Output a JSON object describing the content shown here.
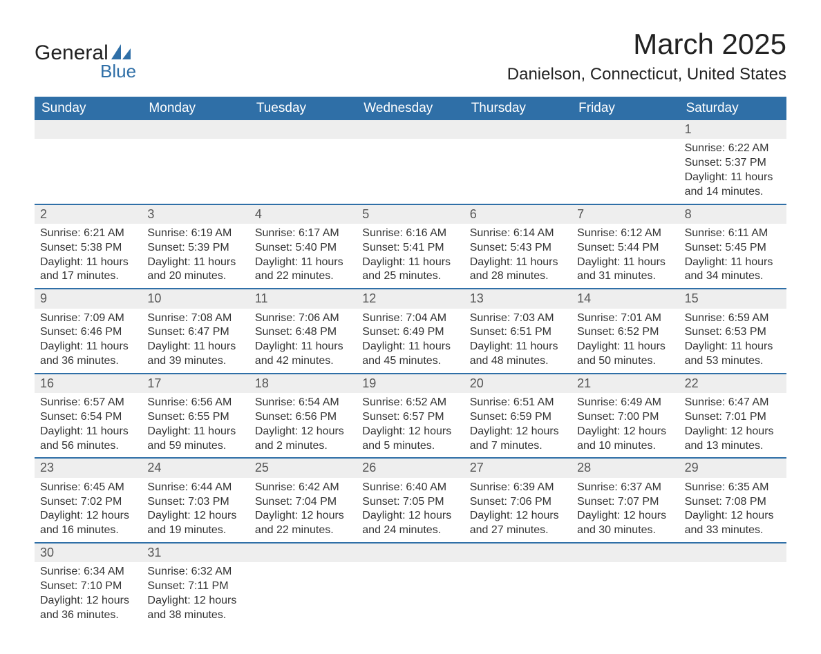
{
  "logo": {
    "word1": "General",
    "word2": "Blue",
    "sail_color": "#2f6fa7"
  },
  "title": "March 2025",
  "location": "Danielson, Connecticut, United States",
  "colors": {
    "header_bg": "#2f6fa7",
    "header_text": "#ffffff",
    "row_divider": "#2f6fa7",
    "daynum_bg": "#eeeeee",
    "text": "#333333"
  },
  "day_headers": [
    "Sunday",
    "Monday",
    "Tuesday",
    "Wednesday",
    "Thursday",
    "Friday",
    "Saturday"
  ],
  "leading_blanks": 6,
  "days": [
    {
      "n": 1,
      "sunrise": "6:22 AM",
      "sunset": "5:37 PM",
      "daylight": "11 hours and 14 minutes."
    },
    {
      "n": 2,
      "sunrise": "6:21 AM",
      "sunset": "5:38 PM",
      "daylight": "11 hours and 17 minutes."
    },
    {
      "n": 3,
      "sunrise": "6:19 AM",
      "sunset": "5:39 PM",
      "daylight": "11 hours and 20 minutes."
    },
    {
      "n": 4,
      "sunrise": "6:17 AM",
      "sunset": "5:40 PM",
      "daylight": "11 hours and 22 minutes."
    },
    {
      "n": 5,
      "sunrise": "6:16 AM",
      "sunset": "5:41 PM",
      "daylight": "11 hours and 25 minutes."
    },
    {
      "n": 6,
      "sunrise": "6:14 AM",
      "sunset": "5:43 PM",
      "daylight": "11 hours and 28 minutes."
    },
    {
      "n": 7,
      "sunrise": "6:12 AM",
      "sunset": "5:44 PM",
      "daylight": "11 hours and 31 minutes."
    },
    {
      "n": 8,
      "sunrise": "6:11 AM",
      "sunset": "5:45 PM",
      "daylight": "11 hours and 34 minutes."
    },
    {
      "n": 9,
      "sunrise": "7:09 AM",
      "sunset": "6:46 PM",
      "daylight": "11 hours and 36 minutes."
    },
    {
      "n": 10,
      "sunrise": "7:08 AM",
      "sunset": "6:47 PM",
      "daylight": "11 hours and 39 minutes."
    },
    {
      "n": 11,
      "sunrise": "7:06 AM",
      "sunset": "6:48 PM",
      "daylight": "11 hours and 42 minutes."
    },
    {
      "n": 12,
      "sunrise": "7:04 AM",
      "sunset": "6:49 PM",
      "daylight": "11 hours and 45 minutes."
    },
    {
      "n": 13,
      "sunrise": "7:03 AM",
      "sunset": "6:51 PM",
      "daylight": "11 hours and 48 minutes."
    },
    {
      "n": 14,
      "sunrise": "7:01 AM",
      "sunset": "6:52 PM",
      "daylight": "11 hours and 50 minutes."
    },
    {
      "n": 15,
      "sunrise": "6:59 AM",
      "sunset": "6:53 PM",
      "daylight": "11 hours and 53 minutes."
    },
    {
      "n": 16,
      "sunrise": "6:57 AM",
      "sunset": "6:54 PM",
      "daylight": "11 hours and 56 minutes."
    },
    {
      "n": 17,
      "sunrise": "6:56 AM",
      "sunset": "6:55 PM",
      "daylight": "11 hours and 59 minutes."
    },
    {
      "n": 18,
      "sunrise": "6:54 AM",
      "sunset": "6:56 PM",
      "daylight": "12 hours and 2 minutes."
    },
    {
      "n": 19,
      "sunrise": "6:52 AM",
      "sunset": "6:57 PM",
      "daylight": "12 hours and 5 minutes."
    },
    {
      "n": 20,
      "sunrise": "6:51 AM",
      "sunset": "6:59 PM",
      "daylight": "12 hours and 7 minutes."
    },
    {
      "n": 21,
      "sunrise": "6:49 AM",
      "sunset": "7:00 PM",
      "daylight": "12 hours and 10 minutes."
    },
    {
      "n": 22,
      "sunrise": "6:47 AM",
      "sunset": "7:01 PM",
      "daylight": "12 hours and 13 minutes."
    },
    {
      "n": 23,
      "sunrise": "6:45 AM",
      "sunset": "7:02 PM",
      "daylight": "12 hours and 16 minutes."
    },
    {
      "n": 24,
      "sunrise": "6:44 AM",
      "sunset": "7:03 PM",
      "daylight": "12 hours and 19 minutes."
    },
    {
      "n": 25,
      "sunrise": "6:42 AM",
      "sunset": "7:04 PM",
      "daylight": "12 hours and 22 minutes."
    },
    {
      "n": 26,
      "sunrise": "6:40 AM",
      "sunset": "7:05 PM",
      "daylight": "12 hours and 24 minutes."
    },
    {
      "n": 27,
      "sunrise": "6:39 AM",
      "sunset": "7:06 PM",
      "daylight": "12 hours and 27 minutes."
    },
    {
      "n": 28,
      "sunrise": "6:37 AM",
      "sunset": "7:07 PM",
      "daylight": "12 hours and 30 minutes."
    },
    {
      "n": 29,
      "sunrise": "6:35 AM",
      "sunset": "7:08 PM",
      "daylight": "12 hours and 33 minutes."
    },
    {
      "n": 30,
      "sunrise": "6:34 AM",
      "sunset": "7:10 PM",
      "daylight": "12 hours and 36 minutes."
    },
    {
      "n": 31,
      "sunrise": "6:32 AM",
      "sunset": "7:11 PM",
      "daylight": "12 hours and 38 minutes."
    }
  ]
}
